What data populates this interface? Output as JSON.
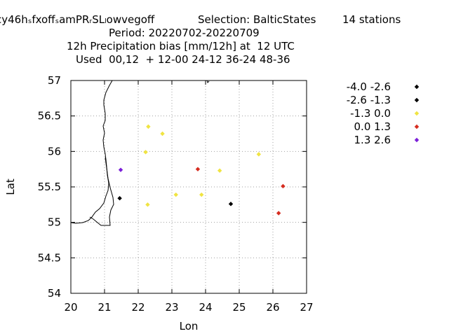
{
  "header": {
    "title_line1": "cy46hₛfxoffₛamPRᵣSLₗowvegoff",
    "selection": "Selection: BalticStates",
    "stations": "14 stations",
    "period": "Period: 20220702-20220709",
    "variable": "12h Precipitation bias [mm/12h] at  12 UTC",
    "used": "Used  00,12  + 12-00 24-12 36-24 48-36"
  },
  "chart_data": {
    "type": "scatter",
    "xlabel": "Lon",
    "ylabel": "Lat",
    "xlim": [
      20,
      27
    ],
    "ylim": [
      54,
      57
    ],
    "xticks": [
      "20",
      "21",
      "22",
      "23",
      "24",
      "25",
      "26",
      "27"
    ],
    "yticks": [
      "54",
      "54.5",
      "55",
      "55.5",
      "56",
      "56.5",
      "57"
    ],
    "grid": true,
    "legend_position": "right",
    "series": [
      {
        "name": "-4.0 -2.6",
        "color": "#000000",
        "points": []
      },
      {
        "name": "-2.6 -1.3",
        "color": "#000000",
        "points": [
          [
            21.45,
            55.34
          ],
          [
            24.75,
            55.26
          ]
        ]
      },
      {
        "name": "-1.3 0.0",
        "color": "#f0e442",
        "points": [
          [
            22.3,
            56.35
          ],
          [
            22.72,
            56.25
          ],
          [
            22.22,
            55.99
          ],
          [
            24.42,
            55.73
          ],
          [
            25.58,
            55.96
          ],
          [
            23.12,
            55.39
          ],
          [
            23.88,
            55.39
          ],
          [
            22.28,
            55.25
          ]
        ]
      },
      {
        "name": "0.0 1.3",
        "color": "#d62d20",
        "points": [
          [
            23.77,
            55.75
          ],
          [
            26.3,
            55.51
          ],
          [
            26.17,
            55.13
          ]
        ]
      },
      {
        "name": "1.3 2.6",
        "color": "#7b1fd8",
        "points": [
          [
            21.48,
            55.74
          ]
        ]
      }
    ]
  }
}
